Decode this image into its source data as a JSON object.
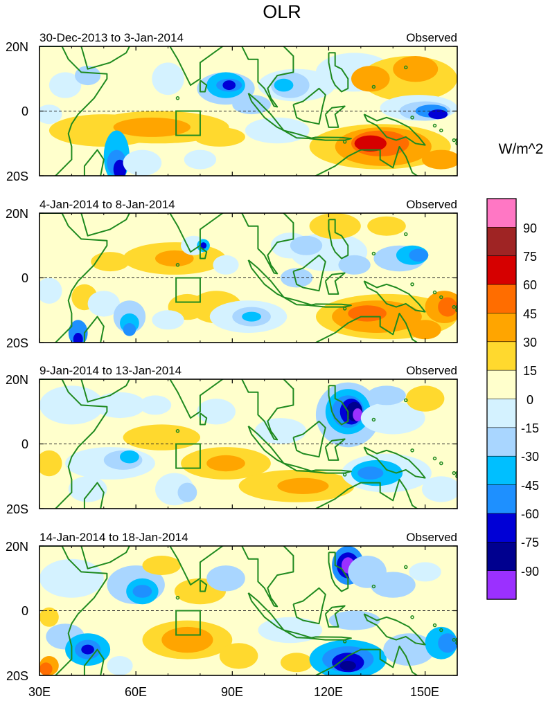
{
  "title": "OLR",
  "units": "W/m^2",
  "colors": {
    "land_outline": "#1f8a1f",
    "box_outline": "#1f8a1f",
    "equator_line": "#222222",
    "levels": [
      "#ff77c4",
      "#9f2424",
      "#d60000",
      "#ff6d00",
      "#ffa500",
      "#ffd92e",
      "#ffffcc",
      "#d4f2ff",
      "#a9d6ff",
      "#00bfff",
      "#1e90ff",
      "#0000d6",
      "#00008f",
      "#9b30ff"
    ]
  },
  "colorbar": {
    "labels": [
      "90",
      "75",
      "60",
      "45",
      "30",
      "15",
      "0",
      "-15",
      "-30",
      "-45",
      "-60",
      "-75",
      "-90"
    ]
  },
  "axes": {
    "lat_labels": [
      "20N",
      "0",
      "20S"
    ],
    "lon_labels": [
      "30E",
      "60E",
      "90E",
      "120E",
      "150E"
    ],
    "lon_range": [
      30,
      160
    ],
    "lat_range": [
      -20,
      20
    ]
  },
  "panels": [
    {
      "period": "30-Dec-2013 to 3-Jan-2014",
      "tag": "Observed",
      "blobs": [
        {
          "lon": 33,
          "lat": -1,
          "rx": 4,
          "ry": 3,
          "level": 7
        },
        {
          "lon": 38,
          "lat": 8,
          "rx": 5,
          "ry": 4,
          "level": 7
        },
        {
          "lon": 45,
          "lat": 11,
          "rx": 4,
          "ry": 3,
          "level": 8
        },
        {
          "lon": 50,
          "lat": -6,
          "rx": 17,
          "ry": 5,
          "level": 5
        },
        {
          "lon": 67,
          "lat": -5,
          "rx": 22,
          "ry": 5,
          "level": 5
        },
        {
          "lon": 65,
          "lat": -5,
          "rx": 12,
          "ry": 3,
          "level": 4
        },
        {
          "lon": 86,
          "lat": -8,
          "rx": 8,
          "ry": 3,
          "level": 5
        },
        {
          "lon": 54,
          "lat": -14,
          "rx": 4,
          "ry": 8,
          "level": 9
        },
        {
          "lon": 54,
          "lat": -16,
          "rx": 3,
          "ry": 4,
          "level": 10
        },
        {
          "lon": 55,
          "lat": -18,
          "rx": 2,
          "ry": 3,
          "level": 11
        },
        {
          "lon": 62,
          "lat": -16,
          "rx": 6,
          "ry": 4,
          "level": 7
        },
        {
          "lon": 80,
          "lat": -15,
          "rx": 5,
          "ry": 3,
          "level": 7
        },
        {
          "lon": 70,
          "lat": 10,
          "rx": 5,
          "ry": 5,
          "level": 7
        },
        {
          "lon": 88,
          "lat": 7,
          "rx": 9,
          "ry": 5,
          "level": 8
        },
        {
          "lon": 88,
          "lat": 8,
          "rx": 6,
          "ry": 4,
          "level": 9
        },
        {
          "lon": 89,
          "lat": 8,
          "rx": 4,
          "ry": 2,
          "level": 10
        },
        {
          "lon": 89,
          "lat": 8,
          "rx": 2,
          "ry": 1.5,
          "level": 11
        },
        {
          "lon": 110,
          "lat": 8,
          "rx": 12,
          "ry": 5,
          "level": 7
        },
        {
          "lon": 108,
          "lat": 8,
          "rx": 6,
          "ry": 4,
          "level": 8
        },
        {
          "lon": 106,
          "lat": 8,
          "rx": 3,
          "ry": 2,
          "level": 9
        },
        {
          "lon": 96,
          "lat": 2,
          "rx": 6,
          "ry": 3,
          "level": 8
        },
        {
          "lon": 104,
          "lat": -6,
          "rx": 10,
          "ry": 4,
          "level": 7
        },
        {
          "lon": 128,
          "lat": 12,
          "rx": 12,
          "ry": 6,
          "level": 7
        },
        {
          "lon": 145,
          "lat": 10,
          "rx": 15,
          "ry": 7,
          "level": 5
        },
        {
          "lon": 133,
          "lat": 10,
          "rx": 6,
          "ry": 4,
          "level": 4
        },
        {
          "lon": 147,
          "lat": 13,
          "rx": 7,
          "ry": 4,
          "level": 4
        },
        {
          "lon": 148,
          "lat": 1,
          "rx": 12,
          "ry": 4,
          "level": 7
        },
        {
          "lon": 150,
          "lat": 0,
          "rx": 8,
          "ry": 3,
          "level": 8
        },
        {
          "lon": 152,
          "lat": 0,
          "rx": 5,
          "ry": 2,
          "level": 10
        },
        {
          "lon": 154,
          "lat": -1,
          "rx": 3,
          "ry": 1.5,
          "level": 11
        },
        {
          "lon": 136,
          "lat": -11,
          "rx": 22,
          "ry": 7,
          "level": 5
        },
        {
          "lon": 137,
          "lat": -11,
          "rx": 15,
          "ry": 6,
          "level": 4
        },
        {
          "lon": 136,
          "lat": -10,
          "rx": 9,
          "ry": 4,
          "level": 3
        },
        {
          "lon": 133,
          "lat": -10,
          "rx": 5,
          "ry": 2.5,
          "level": 2
        },
        {
          "lon": 155,
          "lat": -15,
          "rx": 6,
          "ry": 3,
          "level": 4
        }
      ]
    },
    {
      "period": "4-Jan-2014 to 8-Jan-2014",
      "tag": "Observed",
      "blobs": [
        {
          "lon": 33,
          "lat": -4,
          "rx": 4,
          "ry": 4,
          "level": 7
        },
        {
          "lon": 44,
          "lat": -6,
          "rx": 4,
          "ry": 4,
          "level": 5
        },
        {
          "lon": 50,
          "lat": -8,
          "rx": 5,
          "ry": 4,
          "level": 7
        },
        {
          "lon": 58,
          "lat": -12,
          "rx": 5,
          "ry": 5,
          "level": 8
        },
        {
          "lon": 58,
          "lat": -14,
          "rx": 3,
          "ry": 3,
          "level": 9
        },
        {
          "lon": 58,
          "lat": -16,
          "rx": 2,
          "ry": 2,
          "level": 10
        },
        {
          "lon": 42,
          "lat": -17,
          "rx": 3,
          "ry": 4,
          "level": 10
        },
        {
          "lon": 42,
          "lat": -19,
          "rx": 1.5,
          "ry": 2,
          "level": 11
        },
        {
          "lon": 72,
          "lat": 6,
          "rx": 16,
          "ry": 5,
          "level": 5
        },
        {
          "lon": 72,
          "lat": 6,
          "rx": 6,
          "ry": 2.5,
          "level": 4
        },
        {
          "lon": 52,
          "lat": 5,
          "rx": 6,
          "ry": 3,
          "level": 5
        },
        {
          "lon": 78,
          "lat": 10,
          "rx": 4,
          "ry": 3,
          "level": 7
        },
        {
          "lon": 81,
          "lat": 10,
          "rx": 2,
          "ry": 2,
          "level": 9
        },
        {
          "lon": 81,
          "lat": 10,
          "rx": 1,
          "ry": 1,
          "level": 11
        },
        {
          "lon": 85,
          "lat": -9,
          "rx": 8,
          "ry": 5,
          "level": 5
        },
        {
          "lon": 76,
          "lat": -9,
          "rx": 6,
          "ry": 4,
          "level": 5
        },
        {
          "lon": 70,
          "lat": -13,
          "rx": 5,
          "ry": 3,
          "level": 7
        },
        {
          "lon": 95,
          "lat": -12,
          "rx": 12,
          "ry": 5,
          "level": 7
        },
        {
          "lon": 96,
          "lat": -12,
          "rx": 6,
          "ry": 3,
          "level": 8
        },
        {
          "lon": 96,
          "lat": -12,
          "rx": 3,
          "ry": 1.5,
          "level": 9
        },
        {
          "lon": 88,
          "lat": 4,
          "rx": 4,
          "ry": 3,
          "level": 7
        },
        {
          "lon": 108,
          "lat": 10,
          "rx": 6,
          "ry": 4,
          "level": 7
        },
        {
          "lon": 120,
          "lat": 8,
          "rx": 12,
          "ry": 6,
          "level": 7
        },
        {
          "lon": 113,
          "lat": 10,
          "rx": 5,
          "ry": 3,
          "level": 8
        },
        {
          "lon": 128,
          "lat": 4,
          "rx": 5,
          "ry": 3,
          "level": 8
        },
        {
          "lon": 142,
          "lat": 6,
          "rx": 8,
          "ry": 4,
          "level": 8
        },
        {
          "lon": 146,
          "lat": 7,
          "rx": 5,
          "ry": 3,
          "level": 9
        },
        {
          "lon": 148,
          "lat": 7,
          "rx": 3,
          "ry": 2,
          "level": 10
        },
        {
          "lon": 122,
          "lat": 16,
          "rx": 8,
          "ry": 4,
          "level": 5
        },
        {
          "lon": 138,
          "lat": 16,
          "rx": 6,
          "ry": 3,
          "level": 5
        },
        {
          "lon": 110,
          "lat": 0,
          "rx": 5,
          "ry": 3,
          "level": 8
        },
        {
          "lon": 138,
          "lat": -12,
          "rx": 22,
          "ry": 7,
          "level": 5
        },
        {
          "lon": 135,
          "lat": -12,
          "rx": 14,
          "ry": 5,
          "level": 4
        },
        {
          "lon": 132,
          "lat": -11,
          "rx": 6,
          "ry": 2.5,
          "level": 3
        },
        {
          "lon": 156,
          "lat": -9,
          "rx": 6,
          "ry": 5,
          "level": 4
        },
        {
          "lon": 157,
          "lat": -9,
          "rx": 3,
          "ry": 3,
          "level": 3
        },
        {
          "lon": 150,
          "lat": -16,
          "rx": 5,
          "ry": 3,
          "level": 4
        }
      ]
    },
    {
      "period": "9-Jan-2014 to 13-Jan-2014",
      "tag": "Observed",
      "blobs": [
        {
          "lon": 40,
          "lat": 12,
          "rx": 10,
          "ry": 6,
          "level": 7
        },
        {
          "lon": 55,
          "lat": 12,
          "rx": 8,
          "ry": 4,
          "level": 7
        },
        {
          "lon": 33,
          "lat": -6,
          "rx": 4,
          "ry": 4,
          "level": 5
        },
        {
          "lon": 52,
          "lat": -6,
          "rx": 14,
          "ry": 5,
          "level": 7
        },
        {
          "lon": 56,
          "lat": -5,
          "rx": 6,
          "ry": 3,
          "level": 8
        },
        {
          "lon": 58,
          "lat": -4,
          "rx": 3,
          "ry": 2,
          "level": 9
        },
        {
          "lon": 45,
          "lat": -14,
          "rx": 6,
          "ry": 4,
          "level": 7
        },
        {
          "lon": 68,
          "lat": 2,
          "rx": 12,
          "ry": 4,
          "level": 5
        },
        {
          "lon": 88,
          "lat": -6,
          "rx": 14,
          "ry": 5,
          "level": 5
        },
        {
          "lon": 88,
          "lat": -6,
          "rx": 6,
          "ry": 2.5,
          "level": 4
        },
        {
          "lon": 110,
          "lat": -13,
          "rx": 18,
          "ry": 5,
          "level": 5
        },
        {
          "lon": 112,
          "lat": -13,
          "rx": 8,
          "ry": 2.5,
          "level": 4
        },
        {
          "lon": 72,
          "lat": -14,
          "rx": 6,
          "ry": 5,
          "level": 7
        },
        {
          "lon": 76,
          "lat": -15,
          "rx": 3,
          "ry": 3,
          "level": 8
        },
        {
          "lon": 66,
          "lat": 12,
          "rx": 5,
          "ry": 3,
          "level": 7
        },
        {
          "lon": 85,
          "lat": 10,
          "rx": 6,
          "ry": 4,
          "level": 7
        },
        {
          "lon": 105,
          "lat": 4,
          "rx": 8,
          "ry": 4,
          "level": 7
        },
        {
          "lon": 126,
          "lat": 9,
          "rx": 10,
          "ry": 10,
          "level": 8
        },
        {
          "lon": 126,
          "lat": 10,
          "rx": 7,
          "ry": 7,
          "level": 9
        },
        {
          "lon": 126,
          "lat": 10,
          "rx": 5,
          "ry": 5,
          "level": 10
        },
        {
          "lon": 127,
          "lat": 10,
          "rx": 3.5,
          "ry": 4,
          "level": 11
        },
        {
          "lon": 128,
          "lat": 10,
          "rx": 2.5,
          "ry": 3,
          "level": 12
        },
        {
          "lon": 129,
          "lat": 9,
          "rx": 1.5,
          "ry": 2,
          "level": 13
        },
        {
          "lon": 140,
          "lat": 8,
          "rx": 10,
          "ry": 5,
          "level": 7
        },
        {
          "lon": 138,
          "lat": 15,
          "rx": 6,
          "ry": 3,
          "level": 8
        },
        {
          "lon": 138,
          "lat": -9,
          "rx": 14,
          "ry": 6,
          "level": 7
        },
        {
          "lon": 135,
          "lat": -9,
          "rx": 8,
          "ry": 4,
          "level": 9
        },
        {
          "lon": 133,
          "lat": -9,
          "rx": 4,
          "ry": 2,
          "level": 10
        },
        {
          "lon": 155,
          "lat": -14,
          "rx": 6,
          "ry": 4,
          "level": 7
        },
        {
          "lon": 150,
          "lat": 14,
          "rx": 6,
          "ry": 4,
          "level": 5
        }
      ]
    },
    {
      "period": "14-Jan-2014 to 18-Jan-2014",
      "tag": "Observed",
      "blobs": [
        {
          "lon": 40,
          "lat": 10,
          "rx": 10,
          "ry": 6,
          "level": 7
        },
        {
          "lon": 60,
          "lat": 8,
          "rx": 9,
          "ry": 6,
          "level": 8
        },
        {
          "lon": 62,
          "lat": 6,
          "rx": 5,
          "ry": 4,
          "level": 9
        },
        {
          "lon": 62,
          "lat": 6,
          "rx": 3,
          "ry": 2,
          "level": 10
        },
        {
          "lon": 68,
          "lat": 14,
          "rx": 6,
          "ry": 3,
          "level": 5
        },
        {
          "lon": 80,
          "lat": 6,
          "rx": 8,
          "ry": 4,
          "level": 5
        },
        {
          "lon": 88,
          "lat": 10,
          "rx": 6,
          "ry": 4,
          "level": 8
        },
        {
          "lon": 33,
          "lat": -2,
          "rx": 3,
          "ry": 3,
          "level": 5
        },
        {
          "lon": 38,
          "lat": -8,
          "rx": 6,
          "ry": 4,
          "level": 8
        },
        {
          "lon": 45,
          "lat": -12,
          "rx": 7,
          "ry": 5,
          "level": 9
        },
        {
          "lon": 45,
          "lat": -12,
          "rx": 4,
          "ry": 3,
          "level": 10
        },
        {
          "lon": 45,
          "lat": -12,
          "rx": 2,
          "ry": 1.5,
          "level": 11
        },
        {
          "lon": 33,
          "lat": -17,
          "rx": 3,
          "ry": 3,
          "level": 4
        },
        {
          "lon": 32,
          "lat": -18,
          "rx": 2,
          "ry": 2,
          "level": 3
        },
        {
          "lon": 76,
          "lat": -9,
          "rx": 14,
          "ry": 6,
          "level": 5
        },
        {
          "lon": 76,
          "lat": -9,
          "rx": 8,
          "ry": 4,
          "level": 4
        },
        {
          "lon": 92,
          "lat": -14,
          "rx": 6,
          "ry": 4,
          "level": 5
        },
        {
          "lon": 55,
          "lat": -17,
          "rx": 4,
          "ry": 3,
          "level": 7
        },
        {
          "lon": 110,
          "lat": -16,
          "rx": 5,
          "ry": 3,
          "level": 5
        },
        {
          "lon": 108,
          "lat": -6,
          "rx": 10,
          "ry": 4,
          "level": 7
        },
        {
          "lon": 126,
          "lat": 14,
          "rx": 5,
          "ry": 6,
          "level": 10
        },
        {
          "lon": 126,
          "lat": 14,
          "rx": 3.5,
          "ry": 4,
          "level": 11
        },
        {
          "lon": 126,
          "lat": 14,
          "rx": 2,
          "ry": 2.5,
          "level": 13
        },
        {
          "lon": 132,
          "lat": 12,
          "rx": 6,
          "ry": 5,
          "level": 8
        },
        {
          "lon": 140,
          "lat": 8,
          "rx": 7,
          "ry": 4,
          "level": 8
        },
        {
          "lon": 128,
          "lat": -3,
          "rx": 8,
          "ry": 3,
          "level": 8
        },
        {
          "lon": 126,
          "lat": -15,
          "rx": 12,
          "ry": 6,
          "level": 9
        },
        {
          "lon": 126,
          "lat": -15,
          "rx": 8,
          "ry": 4,
          "level": 10
        },
        {
          "lon": 126,
          "lat": -16,
          "rx": 5,
          "ry": 3,
          "level": 11
        },
        {
          "lon": 126,
          "lat": -17,
          "rx": 2.5,
          "ry": 1.5,
          "level": 12
        },
        {
          "lon": 145,
          "lat": -12,
          "rx": 8,
          "ry": 5,
          "level": 8
        },
        {
          "lon": 155,
          "lat": -10,
          "rx": 5,
          "ry": 5,
          "level": 9
        },
        {
          "lon": 157,
          "lat": -10,
          "rx": 3,
          "ry": 3,
          "level": 10
        },
        {
          "lon": 150,
          "lat": 12,
          "rx": 5,
          "ry": 3,
          "level": 7
        }
      ]
    }
  ]
}
